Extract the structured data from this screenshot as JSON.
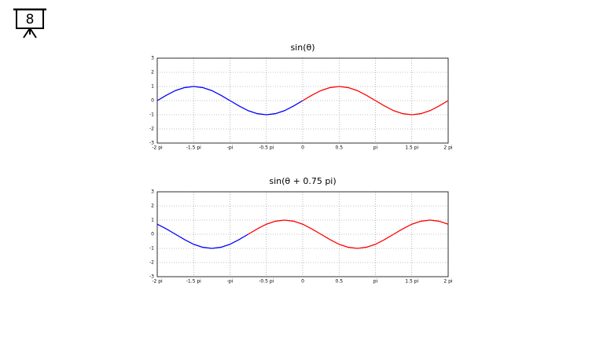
{
  "slide_number": "8",
  "chart_data": [
    {
      "type": "line",
      "title": "sin(θ)",
      "xlim": [
        -2,
        2
      ],
      "xticks": [
        {
          "value": -2,
          "label": "-2 pi"
        },
        {
          "value": -1.5,
          "label": "-1.5 pi"
        },
        {
          "value": -1,
          "label": "-pi"
        },
        {
          "value": -0.5,
          "label": "-0.5 pi"
        },
        0,
        0.5,
        {
          "value": 1,
          "label": "pi"
        },
        {
          "value": 1.5,
          "label": "1.5 pi"
        },
        {
          "value": 2,
          "label": "2 pi"
        }
      ],
      "ylim": [
        -3,
        3
      ],
      "yticks": [
        -3,
        -2,
        -1,
        0,
        1,
        2,
        3
      ],
      "grid": true,
      "series": [
        {
          "color": "#0000ff",
          "x": [
            -2,
            -1.875,
            -1.75,
            -1.625,
            -1.5,
            -1.375,
            -1.25,
            -1.125,
            -1,
            -0.875,
            -0.75,
            -0.625,
            -0.5,
            -0.375,
            -0.25,
            -0.125,
            0
          ],
          "values": [
            0,
            0.38,
            0.71,
            0.92,
            1,
            0.92,
            0.71,
            0.38,
            0,
            -0.38,
            -0.71,
            -0.92,
            -1,
            -0.92,
            -0.71,
            -0.38,
            0
          ]
        },
        {
          "color": "#ff0000",
          "x": [
            0,
            0.125,
            0.25,
            0.375,
            0.5,
            0.625,
            0.75,
            0.875,
            1,
            1.125,
            1.25,
            1.375,
            1.5,
            1.625,
            1.75,
            1.875,
            2
          ],
          "values": [
            0,
            0.38,
            0.71,
            0.92,
            1,
            0.92,
            0.71,
            0.38,
            0,
            -0.38,
            -0.71,
            -0.92,
            -1,
            -0.92,
            -0.71,
            -0.38,
            0
          ]
        }
      ]
    },
    {
      "type": "line",
      "title": "sin(θ + 0.75 pi)",
      "xlim": [
        -2,
        2
      ],
      "xticks": [
        {
          "value": -2,
          "label": "-2 pi"
        },
        {
          "value": -1.5,
          "label": "-1.5 pi"
        },
        {
          "value": -1,
          "label": "-pi"
        },
        {
          "value": -0.5,
          "label": "-0.5 pi"
        },
        0,
        0.5,
        {
          "value": 1,
          "label": "pi"
        },
        {
          "value": 1.5,
          "label": "1.5 pi"
        },
        {
          "value": 2,
          "label": "2 pi"
        }
      ],
      "ylim": [
        -3,
        3
      ],
      "yticks": [
        -3,
        -2,
        -1,
        0,
        1,
        2,
        3
      ],
      "grid": true,
      "series": [
        {
          "color": "#0000ff",
          "x": [
            -2,
            -1.875,
            -1.75,
            -1.625,
            -1.5,
            -1.375,
            -1.25,
            -1.125,
            -1,
            -0.875,
            -0.75
          ],
          "values": [
            0.71,
            0.38,
            0,
            -0.38,
            -0.71,
            -0.92,
            -1,
            -0.92,
            -0.71,
            -0.38,
            0
          ]
        },
        {
          "color": "#ff0000",
          "x": [
            -0.75,
            -0.625,
            -0.5,
            -0.375,
            -0.25,
            -0.125,
            0,
            0.125,
            0.25,
            0.375,
            0.5,
            0.625,
            0.75,
            0.875,
            1,
            1.125,
            1.25,
            1.375,
            1.5,
            1.625,
            1.75,
            1.875,
            2
          ],
          "values": [
            0,
            0.38,
            0.71,
            0.92,
            1,
            0.92,
            0.71,
            0.38,
            0,
            -0.38,
            -0.71,
            -0.92,
            -1,
            -0.92,
            -0.71,
            -0.38,
            0,
            0.38,
            0.71,
            0.92,
            1,
            0.92,
            0.71
          ]
        }
      ]
    }
  ]
}
